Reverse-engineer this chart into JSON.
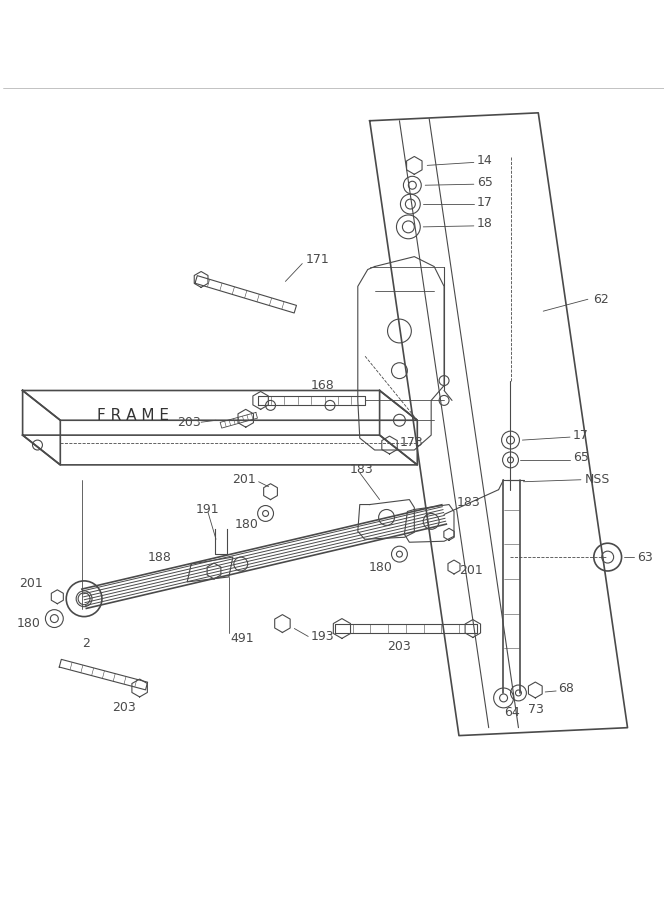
{
  "bg_color": "#ffffff",
  "line_color": "#4a4a4a",
  "lw_main": 1.2,
  "lw_thin": 0.8,
  "lw_fine": 0.6,
  "figsize": [
    6.67,
    9.0
  ],
  "dpi": 100
}
